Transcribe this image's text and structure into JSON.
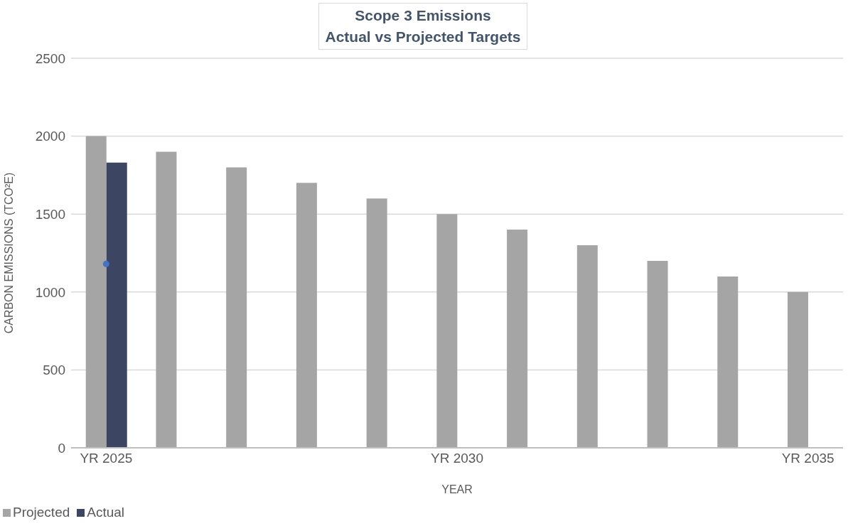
{
  "chart_data": {
    "type": "bar",
    "title": "Scope 3 Emissions\nActual vs Projected Targets",
    "xlabel": "YEAR",
    "ylabel": "CARBON EMISSIONS (TCO²E)",
    "categories": [
      "YR 2025",
      null,
      null,
      null,
      null,
      "YR 2030",
      null,
      null,
      null,
      null,
      "YR 2035"
    ],
    "series": [
      {
        "name": "Projected",
        "color": "#a5a5a5",
        "values": [
          2000,
          1900,
          1800,
          1700,
          1600,
          1500,
          1400,
          1300,
          1200,
          1100,
          1000
        ]
      },
      {
        "name": "Actual",
        "color": "#3c4561",
        "values": [
          1830,
          null,
          null,
          null,
          null,
          null,
          null,
          null,
          null,
          null,
          null
        ]
      },
      {
        "type": "scatter",
        "color": "#4472c4",
        "x": [
          "YR 2025"
        ],
        "values": [
          1180
        ]
      }
    ],
    "ylim": [
      0,
      2500
    ],
    "yticks": [
      0,
      500,
      1000,
      1500,
      2000,
      2500
    ],
    "grid": "y",
    "legend": "bottom left",
    "marker": "circle"
  }
}
